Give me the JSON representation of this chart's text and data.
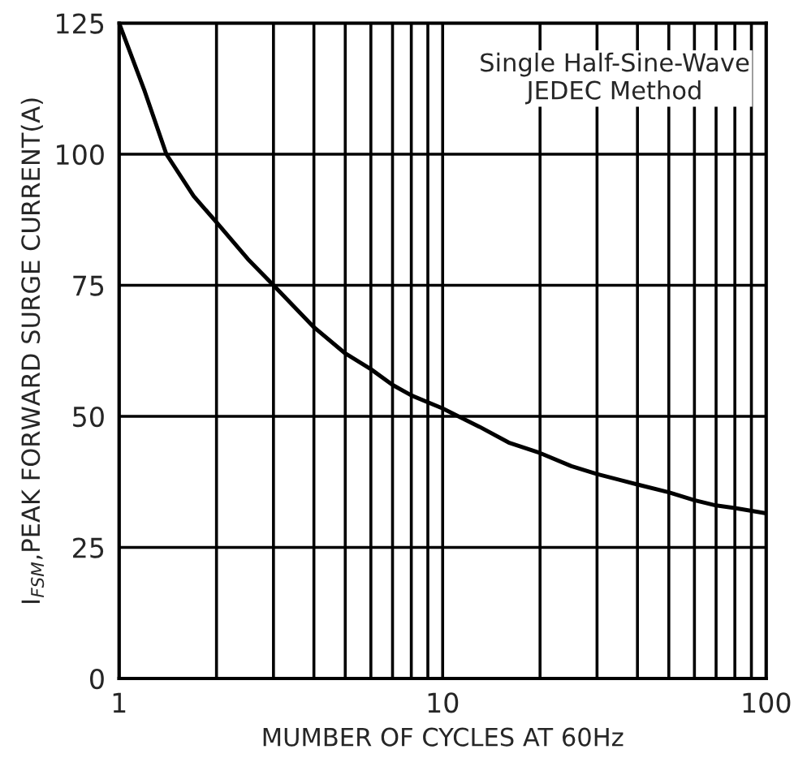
{
  "chart_data": {
    "type": "line",
    "xlabel": "MUMBER OF CYCLES AT 60Hz",
    "ylabel": "I$_{FSM}$,PEAK FORWARD SURGE CURRENT(A)",
    "annotations": [
      "Single Half-Sine-Wave\nJEDEC Method"
    ],
    "x": [
      1,
      1.2,
      1.4,
      1.7,
      2,
      2.5,
      3,
      4,
      5,
      6,
      7,
      8,
      10,
      13,
      16,
      20,
      25,
      30,
      40,
      50,
      60,
      70,
      80,
      100
    ],
    "series": [
      {
        "color": "#000000",
        "values": [
          125,
          112,
          100,
          92,
          87,
          80,
          75,
          67,
          62,
          59,
          56,
          54,
          51.5,
          48,
          45,
          43,
          40.5,
          39,
          37,
          35.5,
          34,
          33,
          32.5,
          31.5
        ]
      }
    ],
    "log": "x",
    "xlim": [
      1,
      100
    ],
    "ylim": [
      0,
      125
    ],
    "xticks": [
      1,
      {
        "value": 2,
        "label": null
      },
      {
        "value": 3,
        "label": null
      },
      {
        "value": 4,
        "label": null
      },
      {
        "value": 5,
        "label": null
      },
      {
        "value": 6,
        "label": null
      },
      {
        "value": 7,
        "label": null
      },
      {
        "value": 8,
        "label": null
      },
      {
        "value": 9,
        "label": null
      },
      10,
      {
        "value": 20,
        "label": null
      },
      {
        "value": 30,
        "label": null
      },
      {
        "value": 40,
        "label": null
      },
      {
        "value": 50,
        "label": null
      },
      {
        "value": 60,
        "label": null
      },
      {
        "value": 70,
        "label": null
      },
      {
        "value": 80,
        "label": null
      },
      {
        "value": 90,
        "label": null
      },
      100
    ],
    "yticks": [
      0,
      25,
      50,
      75,
      100,
      125
    ],
    "grid": true,
    "line_style": "solid",
    "marker": "none"
  }
}
